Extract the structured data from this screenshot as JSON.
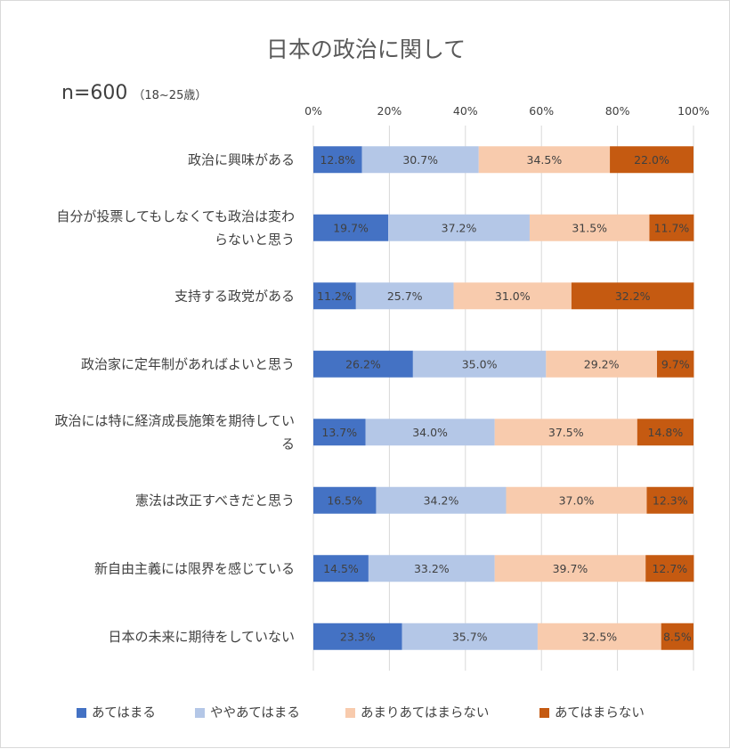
{
  "chart_data": {
    "type": "bar",
    "stacked": true,
    "orientation": "horizontal",
    "normalized_percent": true,
    "title": "日本の政治に関して",
    "subtitle_main": "n=600",
    "subtitle_note": "（18~25歳）",
    "xlim": [
      0,
      100
    ],
    "x_ticks": [
      "0%",
      "20%",
      "40%",
      "60%",
      "80%",
      "100%"
    ],
    "grid": true,
    "legend_position": "bottom",
    "categories": [
      [
        "政治に興味がある"
      ],
      [
        "自分が投票してもしなくても政治は変わ",
        "らないと思う"
      ],
      [
        "支持する政党がある"
      ],
      [
        "政治家に定年制があればよいと思う"
      ],
      [
        "政治には特に経済成長施策を期待してい",
        "る"
      ],
      [
        "憲法は改正すべきだと思う"
      ],
      [
        "新自由主義には限界を感じている"
      ],
      [
        "日本の未来に期待をしていない"
      ]
    ],
    "series": [
      {
        "name": "あてはまる",
        "color": "#4472c4",
        "values": [
          12.8,
          19.7,
          11.2,
          26.2,
          13.7,
          16.5,
          14.5,
          23.3
        ],
        "labels": [
          "12.8%",
          "19.7%",
          "11.2%",
          "26.2%",
          "13.7%",
          "16.5%",
          "14.5%",
          "23.3%"
        ]
      },
      {
        "name": "ややあてはまる",
        "color": "#b4c7e7",
        "values": [
          30.7,
          37.2,
          25.7,
          35.0,
          34.0,
          34.2,
          33.2,
          35.7
        ],
        "labels": [
          "30.7%",
          "37.2%",
          "25.7%",
          "35.0%",
          "34.0%",
          "34.2%",
          "33.2%",
          "35.7%"
        ]
      },
      {
        "name": "あまりあてはまらない",
        "color": "#f8cbad",
        "values": [
          34.5,
          31.5,
          31.0,
          29.2,
          37.5,
          37.0,
          39.7,
          32.5
        ],
        "labels": [
          "34.5%",
          "31.5%",
          "31.0%",
          "29.2%",
          "37.5%",
          "37.0%",
          "39.7%",
          "32.5%"
        ]
      },
      {
        "name": "あてはまらない",
        "color": "#c55a11",
        "values": [
          22.0,
          11.7,
          32.2,
          9.7,
          14.8,
          12.3,
          12.7,
          8.5
        ],
        "labels": [
          "22.0%",
          "11.7%",
          "32.2%",
          "9.7%",
          "14.8%",
          "12.3%",
          "12.7%",
          "8.5%"
        ]
      }
    ]
  }
}
